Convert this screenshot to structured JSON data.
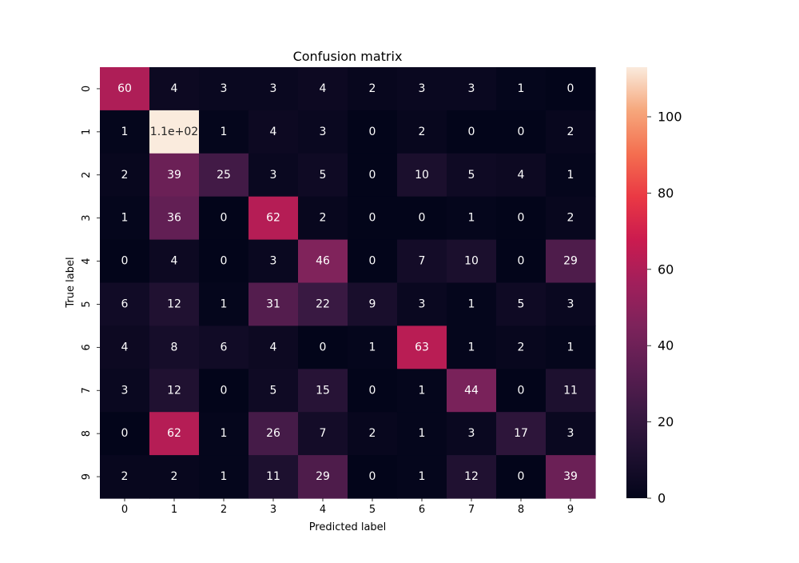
{
  "chart_data": {
    "type": "heatmap",
    "title": "Confusion matrix",
    "xlabel": "Predicted label",
    "ylabel": "True label",
    "x_categories": [
      "0",
      "1",
      "2",
      "3",
      "4",
      "5",
      "6",
      "7",
      "8",
      "9"
    ],
    "y_categories": [
      "0",
      "1",
      "2",
      "3",
      "4",
      "5",
      "6",
      "7",
      "8",
      "9"
    ],
    "values": [
      [
        60,
        4,
        3,
        3,
        4,
        2,
        3,
        3,
        1,
        0
      ],
      [
        1,
        113,
        1,
        4,
        3,
        0,
        2,
        0,
        0,
        2
      ],
      [
        2,
        39,
        25,
        3,
        5,
        0,
        10,
        5,
        4,
        1
      ],
      [
        1,
        36,
        0,
        62,
        2,
        0,
        0,
        1,
        0,
        2
      ],
      [
        0,
        4,
        0,
        3,
        46,
        0,
        7,
        10,
        0,
        29
      ],
      [
        6,
        12,
        1,
        31,
        22,
        9,
        3,
        1,
        5,
        3
      ],
      [
        4,
        8,
        6,
        4,
        0,
        1,
        63,
        1,
        2,
        1
      ],
      [
        3,
        12,
        0,
        5,
        15,
        0,
        1,
        44,
        0,
        11
      ],
      [
        0,
        62,
        1,
        26,
        7,
        2,
        1,
        3,
        17,
        3
      ],
      [
        2,
        2,
        1,
        11,
        29,
        0,
        1,
        12,
        0,
        39
      ]
    ],
    "annotations": [
      [
        "60",
        "4",
        "3",
        "3",
        "4",
        "2",
        "3",
        "3",
        "1",
        "0"
      ],
      [
        "1",
        "1.1e+02",
        "1",
        "4",
        "3",
        "0",
        "2",
        "0",
        "0",
        "2"
      ],
      [
        "2",
        "39",
        "25",
        "3",
        "5",
        "0",
        "10",
        "5",
        "4",
        "1"
      ],
      [
        "1",
        "36",
        "0",
        "62",
        "2",
        "0",
        "0",
        "1",
        "0",
        "2"
      ],
      [
        "0",
        "4",
        "0",
        "3",
        "46",
        "0",
        "7",
        "10",
        "0",
        "29"
      ],
      [
        "6",
        "12",
        "1",
        "31",
        "22",
        "9",
        "3",
        "1",
        "5",
        "3"
      ],
      [
        "4",
        "8",
        "6",
        "4",
        "0",
        "1",
        "63",
        "1",
        "2",
        "1"
      ],
      [
        "3",
        "12",
        "0",
        "5",
        "15",
        "0",
        "1",
        "44",
        "0",
        "11"
      ],
      [
        "0",
        "62",
        "1",
        "26",
        "7",
        "2",
        "1",
        "3",
        "17",
        "3"
      ],
      [
        "2",
        "2",
        "1",
        "11",
        "29",
        "0",
        "1",
        "12",
        "0",
        "39"
      ]
    ],
    "colorbar": {
      "range": [
        0,
        113
      ],
      "ticks": [
        0,
        20,
        40,
        60,
        80,
        100
      ]
    },
    "colormap": "rocket",
    "colors": {
      "low": "#03051a",
      "high": "#faebdd",
      "annotation_light": "#ffffff",
      "annotation_dark": "#262626"
    }
  }
}
